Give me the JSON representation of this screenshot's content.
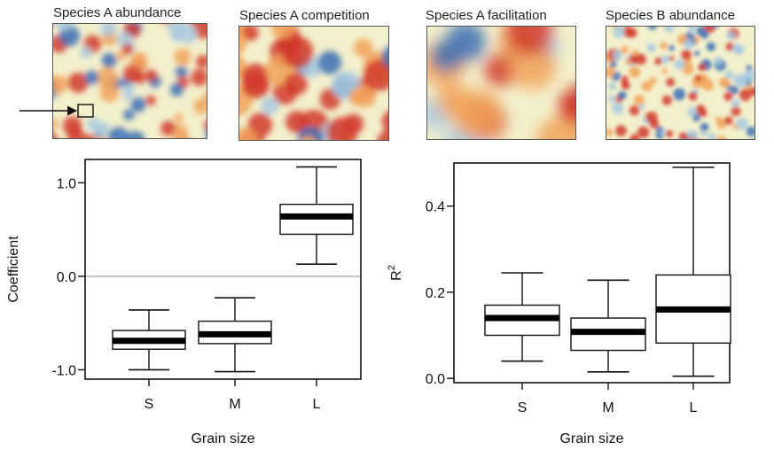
{
  "maps": [
    {
      "title": "Species A abundance",
      "palette": [
        "#3a6fb5",
        "#a9c9e0",
        "#f3f0cc",
        "#f2a25a",
        "#d2392a"
      ]
    },
    {
      "title": "Species A competition",
      "palette": [
        "#3a6fb5",
        "#a9c9e0",
        "#f3f0cc",
        "#f2a25a",
        "#d2392a"
      ]
    },
    {
      "title": "Species A facilitation",
      "palette": [
        "#3a6fb5",
        "#a9c9e0",
        "#f3f0cc",
        "#f2a25a",
        "#d2392a"
      ]
    },
    {
      "title": "Species B abundance",
      "palette": [
        "#3a6fb5",
        "#a9c9e0",
        "#f3f0cc",
        "#f2a25a",
        "#d2392a"
      ]
    }
  ],
  "chart_data": [
    {
      "type": "box",
      "categories": [
        "S",
        "M",
        "L"
      ],
      "xlabel": "Grain size",
      "ylabel": "Coefficient",
      "ylim": [
        -1.1,
        1.25
      ],
      "yticks": [
        {
          "v": -1.0,
          "label": "-1.0"
        },
        {
          "v": 0.0,
          "label": "0.0"
        },
        {
          "v": 1.0,
          "label": "1.0"
        }
      ],
      "reference_line": 0.0,
      "boxes": [
        {
          "min": -1.0,
          "q1": -0.78,
          "median": -0.69,
          "q3": -0.58,
          "max": -0.36
        },
        {
          "min": -1.02,
          "q1": -0.72,
          "median": -0.62,
          "q3": -0.48,
          "max": -0.23
        },
        {
          "min": 0.13,
          "q1": 0.45,
          "median": 0.64,
          "q3": 0.77,
          "max": 1.17
        }
      ]
    },
    {
      "type": "box",
      "categories": [
        "S",
        "M",
        "L"
      ],
      "xlabel": "Grain size",
      "ylabel": "R",
      "ylabel_sup": "2",
      "ylim": [
        -0.01,
        0.5
      ],
      "yticks": [
        {
          "v": 0.0,
          "label": "0.0"
        },
        {
          "v": 0.2,
          "label": "0.2"
        },
        {
          "v": 0.4,
          "label": "0.4"
        }
      ],
      "boxes": [
        {
          "min": 0.04,
          "q1": 0.1,
          "median": 0.14,
          "q3": 0.17,
          "max": 0.245
        },
        {
          "min": 0.015,
          "q1": 0.065,
          "median": 0.108,
          "q3": 0.14,
          "max": 0.228
        },
        {
          "min": 0.005,
          "q1": 0.082,
          "median": 0.16,
          "q3": 0.24,
          "max": 0.49
        }
      ]
    }
  ]
}
